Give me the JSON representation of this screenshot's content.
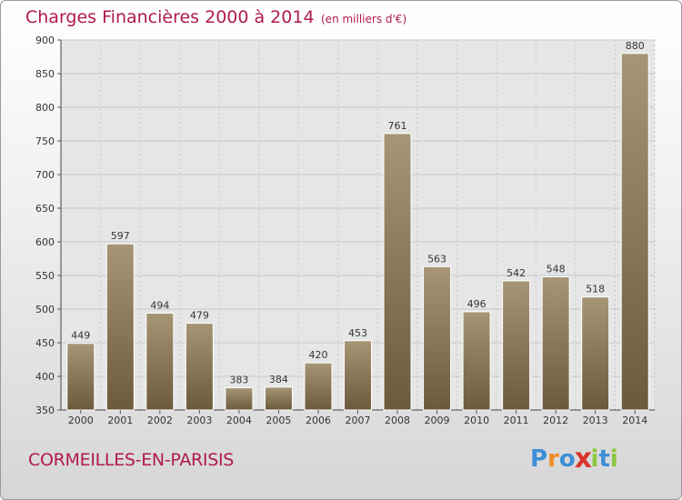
{
  "header": {
    "title": "Charges Financières 2000 à 2014",
    "subtitle": "(en milliers d'€)"
  },
  "footer": {
    "city": "CORMEILLES-EN-PARISIS",
    "logo": {
      "letters": [
        "P",
        "r",
        "o",
        "x",
        "i",
        "t",
        "i"
      ],
      "colors": [
        "#3d8fd6",
        "#f28c28",
        "#3d8fd6",
        "#d9362b",
        "#8dc63f",
        "#3d8fd6",
        "#8dc63f"
      ]
    }
  },
  "colors": {
    "bar_top": "#a69676",
    "bar_bottom": "#6b5a3c",
    "plot_bg": "#e6e6e6",
    "grid": "#c8c8c8",
    "title": "#b01a4e"
  },
  "chart_data": {
    "type": "bar",
    "categories": [
      "2000",
      "2001",
      "2002",
      "2003",
      "2004",
      "2005",
      "2006",
      "2007",
      "2008",
      "2009",
      "2010",
      "2011",
      "2012",
      "2013",
      "2014"
    ],
    "values": [
      449,
      597,
      494,
      479,
      383,
      384,
      420,
      453,
      761,
      563,
      496,
      542,
      548,
      518,
      880
    ],
    "title": "Charges Financières 2000 à 2014",
    "subtitle": "(en milliers d'€)",
    "xlabel": "",
    "ylabel": "",
    "ylim": [
      350,
      900
    ],
    "yticks": [
      350,
      400,
      450,
      500,
      550,
      600,
      650,
      700,
      750,
      800,
      850,
      900
    ],
    "grid": true,
    "data_labels": true
  }
}
